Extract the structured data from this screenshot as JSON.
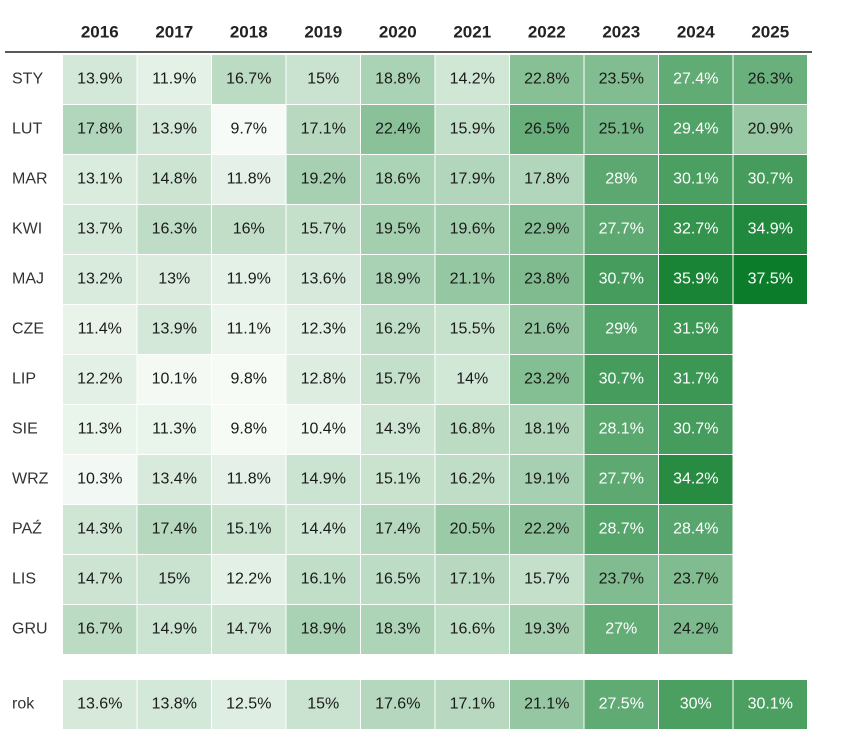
{
  "chart_data": {
    "type": "heatmap",
    "title": "",
    "xlabel": "",
    "ylabel": "",
    "columns": [
      "2016",
      "2017",
      "2018",
      "2019",
      "2020",
      "2021",
      "2022",
      "2023",
      "2024",
      "2025"
    ],
    "rows": [
      "STY",
      "LUT",
      "MAR",
      "KWI",
      "MAJ",
      "CZE",
      "LIP",
      "SIE",
      "WRZ",
      "PAŹ",
      "LIS",
      "GRU"
    ],
    "values": [
      [
        13.9,
        11.9,
        16.7,
        15,
        18.8,
        14.2,
        22.8,
        23.5,
        27.4,
        26.3
      ],
      [
        17.8,
        13.9,
        9.7,
        17.1,
        22.4,
        15.9,
        26.5,
        25.1,
        29.4,
        20.9
      ],
      [
        13.1,
        14.8,
        11.8,
        19.2,
        18.6,
        17.9,
        17.8,
        28,
        30.1,
        30.7
      ],
      [
        13.7,
        16.3,
        16,
        15.7,
        19.5,
        19.6,
        22.9,
        27.7,
        32.7,
        34.9
      ],
      [
        13.2,
        13,
        11.9,
        13.6,
        18.9,
        21.1,
        23.8,
        30.7,
        35.9,
        37.5
      ],
      [
        11.4,
        13.9,
        11.1,
        12.3,
        16.2,
        15.5,
        21.6,
        29,
        31.5,
        null
      ],
      [
        12.2,
        10.1,
        9.8,
        12.8,
        15.7,
        14,
        23.2,
        30.7,
        31.7,
        null
      ],
      [
        11.3,
        11.3,
        9.8,
        10.4,
        14.3,
        16.8,
        18.1,
        28.1,
        30.7,
        null
      ],
      [
        10.3,
        13.4,
        11.8,
        14.9,
        15.1,
        16.2,
        19.1,
        27.7,
        34.2,
        null
      ],
      [
        14.3,
        17.4,
        15.1,
        14.4,
        17.4,
        20.5,
        22.2,
        28.7,
        28.4,
        null
      ],
      [
        14.7,
        15,
        12.2,
        16.1,
        16.5,
        17.1,
        15.7,
        23.7,
        23.7,
        null
      ],
      [
        16.7,
        14.9,
        14.7,
        18.9,
        18.3,
        16.6,
        19.3,
        27,
        24.2,
        null
      ]
    ],
    "summary": {
      "label": "rok",
      "values": [
        13.6,
        13.8,
        12.5,
        15,
        17.6,
        17.1,
        21.1,
        27.5,
        30,
        30.1
      ]
    },
    "value_suffix": "%",
    "color_scale": {
      "low": "#f7fbf7",
      "high": "#0b7d2a",
      "min": 9.7,
      "max": 37.5
    },
    "grid": false,
    "legend": "none"
  }
}
